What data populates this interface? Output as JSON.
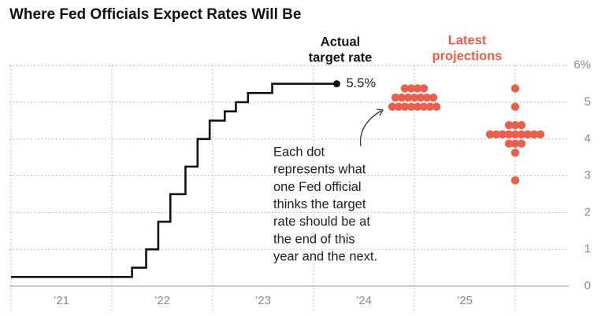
{
  "chart_data": {
    "type": "step-dot",
    "title": "Where Fed Officials Expect Rates Will Be",
    "actual_label": [
      "Actual",
      "target rate"
    ],
    "projection_label": [
      "Latest",
      "projections"
    ],
    "annotation": [
      "Each dot",
      "represents what",
      "one Fed official",
      "thinks the target",
      "rate should be at",
      "the end of this",
      "year and the next."
    ],
    "xlim": [
      2021,
      2026.5
    ],
    "xgrid": [
      2021,
      2022,
      2023,
      2024,
      2025,
      2026
    ],
    "xticks": [
      {
        "value": 2021.5,
        "label": "’21"
      },
      {
        "value": 2022.5,
        "label": "’22"
      },
      {
        "value": 2023.5,
        "label": "’23"
      },
      {
        "value": 2024.5,
        "label": "’24"
      },
      {
        "value": 2025.5,
        "label": "’25"
      }
    ],
    "ylim": [
      0,
      6
    ],
    "yticks": [
      0,
      1,
      2,
      3,
      4,
      5,
      {
        "value": 6,
        "label": "6%"
      }
    ],
    "grid": true,
    "series": [
      {
        "name": "Actual target rate",
        "color": "#111111",
        "x": [
          2021.0,
          2022.2,
          2022.34,
          2022.46,
          2022.58,
          2022.73,
          2022.85,
          2022.97,
          2023.12,
          2023.23,
          2023.35,
          2023.59,
          2024.23
        ],
        "values": [
          0.25,
          0.5,
          1,
          1.75,
          2.5,
          3.25,
          4,
          4.5,
          4.75,
          5,
          5.25,
          5.5,
          5.5
        ],
        "end_label": "5.5%"
      }
    ],
    "projections": {
      "color": "#e8604c",
      "columns": [
        {
          "x": 2025,
          "values": [
            5.375,
            5.125,
            4.875
          ],
          "counts": [
            4,
            7,
            8
          ]
        },
        {
          "x": 2026,
          "values": [
            5.375,
            4.875,
            4.375,
            4.125,
            3.875,
            3.625,
            2.875
          ],
          "counts": [
            1,
            1,
            3,
            9,
            3,
            1,
            1
          ]
        }
      ]
    }
  }
}
